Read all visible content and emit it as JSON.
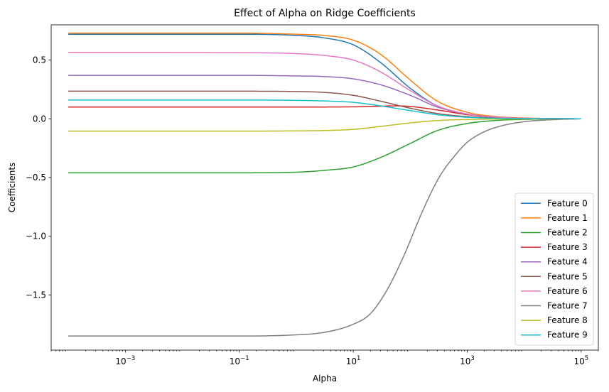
{
  "chart_data": {
    "type": "line",
    "title": "Effect of Alpha on Ridge Coefficients",
    "xlabel": "Alpha",
    "ylabel": "Coefficients",
    "xscale": "log",
    "xlim": [
      5e-05,
      200000
    ],
    "ylim": [
      -1.97,
      0.8
    ],
    "xticks": [
      0.001,
      0.1,
      10,
      1000,
      100000
    ],
    "xtick_labels": [
      {
        "base": "10",
        "exp": "−3"
      },
      {
        "base": "10",
        "exp": "−1"
      },
      {
        "base": "10",
        "exp": "1"
      },
      {
        "base": "10",
        "exp": "3"
      },
      {
        "base": "10",
        "exp": "5"
      }
    ],
    "yticks": [
      0.5,
      0.0,
      -0.5,
      -1.0,
      -1.5
    ],
    "ytick_labels": [
      "0.5",
      "0.0",
      "−0.5",
      "−1.0",
      "−1.5"
    ],
    "grid": false,
    "legend_position": "lower right",
    "series": [
      {
        "name": "Feature 0",
        "color": "#1f77b4",
        "x": [
          0.0001,
          0.1,
          1,
          3,
          10,
          30,
          100,
          300,
          1000,
          3000,
          10000,
          100000
        ],
        "y": [
          0.72,
          0.72,
          0.71,
          0.69,
          0.63,
          0.48,
          0.26,
          0.11,
          0.04,
          0.015,
          0.005,
          0.0
        ]
      },
      {
        "name": "Feature 1",
        "color": "#ff7f0e",
        "x": [
          0.0001,
          0.1,
          1,
          3,
          10,
          30,
          100,
          300,
          1000,
          3000,
          10000,
          100000
        ],
        "y": [
          0.73,
          0.73,
          0.72,
          0.71,
          0.67,
          0.55,
          0.33,
          0.15,
          0.055,
          0.02,
          0.007,
          0.0
        ]
      },
      {
        "name": "Feature 2",
        "color": "#2ca02c",
        "x": [
          0.0001,
          0.1,
          1,
          3,
          10,
          30,
          100,
          300,
          1000,
          3000,
          10000,
          100000
        ],
        "y": [
          -0.46,
          -0.46,
          -0.455,
          -0.44,
          -0.41,
          -0.33,
          -0.21,
          -0.1,
          -0.04,
          -0.015,
          -0.005,
          0.0
        ]
      },
      {
        "name": "Feature 3",
        "color": "#d62728",
        "x": [
          0.0001,
          0.1,
          1,
          10,
          30,
          50,
          100,
          300,
          1000,
          3000,
          10000,
          100000
        ],
        "y": [
          0.1,
          0.1,
          0.1,
          0.102,
          0.107,
          0.11,
          0.105,
          0.075,
          0.035,
          0.013,
          0.004,
          0.0
        ]
      },
      {
        "name": "Feature 4",
        "color": "#9467bd",
        "x": [
          0.0001,
          0.1,
          1,
          3,
          10,
          30,
          100,
          300,
          1000,
          3000,
          10000,
          100000
        ],
        "y": [
          0.37,
          0.37,
          0.365,
          0.36,
          0.34,
          0.29,
          0.2,
          0.1,
          0.04,
          0.015,
          0.005,
          0.0
        ]
      },
      {
        "name": "Feature 5",
        "color": "#8c564b",
        "x": [
          0.0001,
          0.1,
          1,
          3,
          10,
          30,
          100,
          300,
          1000,
          3000,
          10000,
          100000
        ],
        "y": [
          0.235,
          0.235,
          0.232,
          0.225,
          0.2,
          0.15,
          0.09,
          0.045,
          0.018,
          0.007,
          0.002,
          0.0
        ]
      },
      {
        "name": "Feature 6",
        "color": "#e377c2",
        "x": [
          0.0001,
          0.1,
          1,
          3,
          10,
          30,
          100,
          300,
          1000,
          3000,
          10000,
          100000
        ],
        "y": [
          0.565,
          0.563,
          0.555,
          0.54,
          0.5,
          0.4,
          0.24,
          0.11,
          0.04,
          0.015,
          0.005,
          0.0
        ]
      },
      {
        "name": "Feature 7",
        "color": "#7f7f7f",
        "x": [
          0.0001,
          0.1,
          1,
          3,
          10,
          20,
          40,
          80,
          160,
          320,
          640,
          1000,
          2000,
          4000,
          10000,
          30000,
          100000
        ],
        "y": [
          -1.85,
          -1.85,
          -1.84,
          -1.82,
          -1.75,
          -1.66,
          -1.45,
          -1.15,
          -0.8,
          -0.5,
          -0.3,
          -0.2,
          -0.11,
          -0.06,
          -0.025,
          -0.008,
          0.0
        ]
      },
      {
        "name": "Feature 8",
        "color": "#bcbd22",
        "x": [
          0.0001,
          0.1,
          1,
          3,
          10,
          30,
          100,
          300,
          1000,
          3000,
          10000,
          100000
        ],
        "y": [
          -0.105,
          -0.105,
          -0.103,
          -0.1,
          -0.09,
          -0.065,
          -0.035,
          -0.015,
          -0.006,
          -0.002,
          -0.001,
          0.0
        ]
      },
      {
        "name": "Feature 9",
        "color": "#17becf",
        "x": [
          0.0001,
          0.1,
          1,
          3,
          10,
          30,
          100,
          300,
          1000,
          3000,
          10000,
          100000
        ],
        "y": [
          0.16,
          0.16,
          0.157,
          0.152,
          0.14,
          0.11,
          0.07,
          0.035,
          0.013,
          0.005,
          0.002,
          0.0
        ]
      }
    ]
  }
}
